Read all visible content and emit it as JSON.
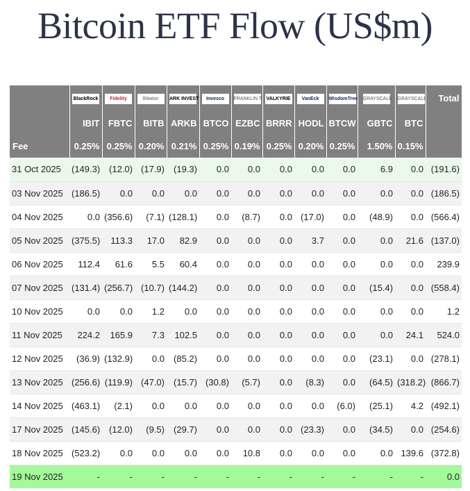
{
  "title": "Bitcoin ETF Flow (US$m)",
  "colors": {
    "header_bg": "#808080",
    "negative": "#e02020",
    "first_row_bg": "#ebf9ea",
    "last_row_bg": "#a4f99a",
    "alt_row_bg": "#f2f2f2"
  },
  "header": {
    "total_label": "Total",
    "fee_label": "Fee",
    "columns": [
      {
        "logo": "BlackRock",
        "ticker": "IBIT",
        "fee": "0.25%"
      },
      {
        "logo": "Fidelity",
        "ticker": "FBTC",
        "fee": "0.25%"
      },
      {
        "logo": "Bitwise",
        "ticker": "BITB",
        "fee": "0.20%"
      },
      {
        "logo": "ARK INVEST",
        "ticker": "ARKB",
        "fee": "0.21%"
      },
      {
        "logo": "Invesco",
        "ticker": "BTCO",
        "fee": "0.25%"
      },
      {
        "logo": "FRANKLIN TEMPLETON",
        "ticker": "EZBC",
        "fee": "0.19%"
      },
      {
        "logo": "VALKYRIE",
        "ticker": "BRRR",
        "fee": "0.25%"
      },
      {
        "logo": "VanEck",
        "ticker": "HODL",
        "fee": "0.20%"
      },
      {
        "logo": "WisdomTree",
        "ticker": "BTCW",
        "fee": "0.25%"
      },
      {
        "logo": "GRAYSCALE",
        "ticker": "GBTC",
        "fee": "1.50%"
      },
      {
        "logo": "GRAYSCALE",
        "ticker": "BTC",
        "fee": "0.15%"
      }
    ]
  },
  "chart_data": {
    "type": "table",
    "title": "Bitcoin ETF Flow (US$m)",
    "columns": [
      "IBIT",
      "FBTC",
      "BITB",
      "ARKB",
      "BTCO",
      "EZBC",
      "BRRR",
      "HODL",
      "BTCW",
      "GBTC",
      "BTC",
      "Total"
    ],
    "rows": [
      {
        "date": "31 Oct 2025",
        "values": [
          "(149.3)",
          "(12.0)",
          "(17.9)",
          "(19.3)",
          "0.0",
          "0.0",
          "0.0",
          "0.0",
          "0.0",
          "6.9",
          "0.0",
          "(191.6)"
        ]
      },
      {
        "date": "03 Nov 2025",
        "values": [
          "(186.5)",
          "0.0",
          "0.0",
          "0.0",
          "0.0",
          "0.0",
          "0.0",
          "0.0",
          "0.0",
          "0.0",
          "0.0",
          "(186.5)"
        ]
      },
      {
        "date": "04 Nov 2025",
        "values": [
          "0.0",
          "(356.6)",
          "(7.1)",
          "(128.1)",
          "0.0",
          "(8.7)",
          "0.0",
          "(17.0)",
          "0.0",
          "(48.9)",
          "0.0",
          "(566.4)"
        ]
      },
      {
        "date": "05 Nov 2025",
        "values": [
          "(375.5)",
          "113.3",
          "17.0",
          "82.9",
          "0.0",
          "0.0",
          "0.0",
          "3.7",
          "0.0",
          "0.0",
          "21.6",
          "(137.0)"
        ]
      },
      {
        "date": "06 Nov 2025",
        "values": [
          "112.4",
          "61.6",
          "5.5",
          "60.4",
          "0.0",
          "0.0",
          "0.0",
          "0.0",
          "0.0",
          "0.0",
          "0.0",
          "239.9"
        ]
      },
      {
        "date": "07 Nov 2025",
        "values": [
          "(131.4)",
          "(256.7)",
          "(10.7)",
          "(144.2)",
          "0.0",
          "0.0",
          "0.0",
          "0.0",
          "0.0",
          "(15.4)",
          "0.0",
          "(558.4)"
        ]
      },
      {
        "date": "10 Nov 2025",
        "values": [
          "0.0",
          "0.0",
          "1.2",
          "0.0",
          "0.0",
          "0.0",
          "0.0",
          "0.0",
          "0.0",
          "0.0",
          "0.0",
          "1.2"
        ]
      },
      {
        "date": "11 Nov 2025",
        "values": [
          "224.2",
          "165.9",
          "7.3",
          "102.5",
          "0.0",
          "0.0",
          "0.0",
          "0.0",
          "0.0",
          "0.0",
          "24.1",
          "524.0"
        ]
      },
      {
        "date": "12 Nov 2025",
        "values": [
          "(36.9)",
          "(132.9)",
          "0.0",
          "(85.2)",
          "0.0",
          "0.0",
          "0.0",
          "0.0",
          "0.0",
          "(23.1)",
          "0.0",
          "(278.1)"
        ]
      },
      {
        "date": "13 Nov 2025",
        "values": [
          "(256.6)",
          "(119.9)",
          "(47.0)",
          "(15.7)",
          "(30.8)",
          "(5.7)",
          "0.0",
          "(8.3)",
          "0.0",
          "(64.5)",
          "(318.2)",
          "(866.7)"
        ]
      },
      {
        "date": "14 Nov 2025",
        "values": [
          "(463.1)",
          "(2.1)",
          "0.0",
          "0.0",
          "0.0",
          "0.0",
          "0.0",
          "0.0",
          "(6.0)",
          "(25.1)",
          "4.2",
          "(492.1)"
        ]
      },
      {
        "date": "17 Nov 2025",
        "values": [
          "(145.6)",
          "(12.0)",
          "(9.5)",
          "(29.7)",
          "0.0",
          "0.0",
          "0.0",
          "(23.3)",
          "0.0",
          "(34.5)",
          "0.0",
          "(254.6)"
        ]
      },
      {
        "date": "18 Nov 2025",
        "values": [
          "(523.2)",
          "0.0",
          "0.0",
          "0.0",
          "0.0",
          "10.8",
          "0.0",
          "0.0",
          "0.0",
          "0.0",
          "139.6",
          "(372.8)"
        ]
      },
      {
        "date": "19 Nov 2025",
        "values": [
          "-",
          "-",
          "-",
          "-",
          "-",
          "-",
          "-",
          "-",
          "-",
          "-",
          "-",
          "0.0"
        ]
      }
    ]
  }
}
